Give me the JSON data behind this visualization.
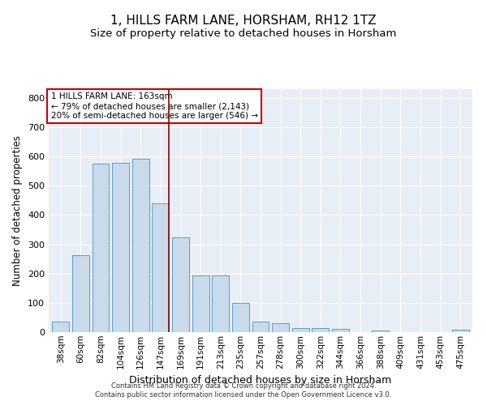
{
  "title": "1, HILLS FARM LANE, HORSHAM, RH12 1TZ",
  "subtitle": "Size of property relative to detached houses in Horsham",
  "xlabel": "Distribution of detached houses by size in Horsham",
  "ylabel": "Number of detached properties",
  "categories": [
    "38sqm",
    "60sqm",
    "82sqm",
    "104sqm",
    "126sqm",
    "147sqm",
    "169sqm",
    "191sqm",
    "213sqm",
    "235sqm",
    "257sqm",
    "278sqm",
    "300sqm",
    "322sqm",
    "344sqm",
    "366sqm",
    "388sqm",
    "409sqm",
    "431sqm",
    "453sqm",
    "475sqm"
  ],
  "values": [
    35,
    263,
    575,
    578,
    593,
    440,
    325,
    193,
    193,
    100,
    35,
    30,
    15,
    13,
    10,
    0,
    6,
    0,
    0,
    0,
    7
  ],
  "bar_color": "#c9daea",
  "bar_edge_color": "#5a9ec9",
  "bg_color": "#e8eef5",
  "marker_index": 6,
  "annotation_line1": "1 HILLS FARM LANE: 163sqm",
  "annotation_line2": "← 79% of detached houses are smaller (2,143)",
  "annotation_line3": "20% of semi-detached houses are larger (546) →",
  "vline_color": "#8b0000",
  "annotation_box_color": "#ffffff",
  "annotation_box_edge": "#cc0000",
  "footer1": "Contains HM Land Registry data © Crown copyright and database right 2024.",
  "footer2": "Contains public sector information licensed under the Open Government Licence v3.0.",
  "ylim": [
    0,
    830
  ],
  "yticks": [
    0,
    100,
    200,
    300,
    400,
    500,
    600,
    700,
    800
  ],
  "title_fontsize": 11,
  "subtitle_fontsize": 9.5,
  "tick_fontsize": 7.5,
  "ylabel_fontsize": 8.5,
  "xlabel_fontsize": 9,
  "annotation_fontsize": 7.5,
  "footer_fontsize": 6
}
